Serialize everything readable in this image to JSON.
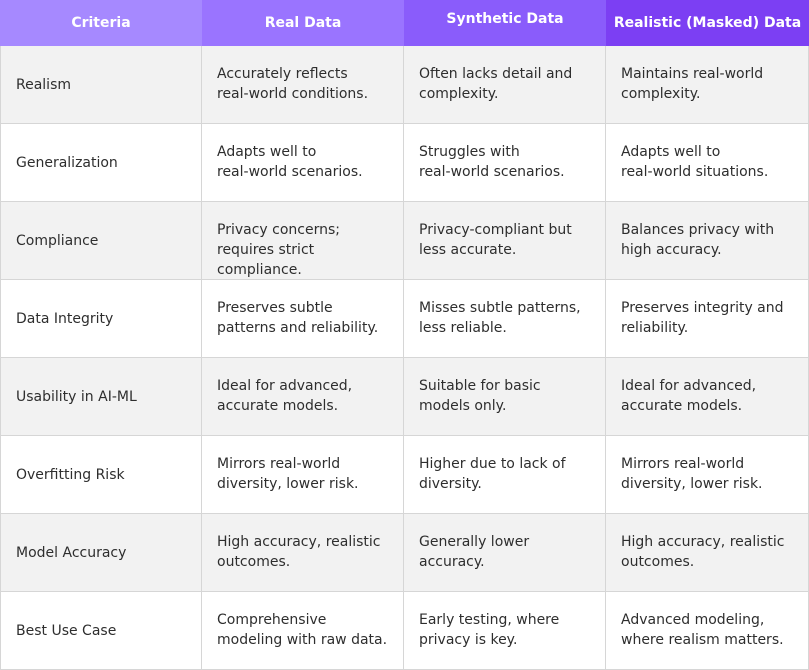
{
  "table": {
    "headers": [
      "Criteria",
      "Real Data",
      "Synthetic Data",
      "Realistic (Masked) Data"
    ],
    "rows": [
      [
        "Realism",
        "Accurately reflects\nreal-world conditions.",
        "Often lacks detail and\ncomplexity.",
        "Maintains real-world\ncomplexity."
      ],
      [
        "Generalization",
        "Adapts well to\nreal-world scenarios.",
        "Struggles with\nreal-world scenarios.",
        "Adapts well to\nreal-world situations."
      ],
      [
        "Compliance",
        "Privacy concerns;\nrequires strict\ncompliance.",
        "Privacy-compliant but\nless accurate.",
        "Balances privacy with\nhigh accuracy."
      ],
      [
        "Data Integrity",
        "Preserves subtle\npatterns and reliability.",
        "Misses subtle patterns,\nless reliable.",
        "Preserves integrity and\nreliability."
      ],
      [
        "Usability in AI-ML",
        "Ideal for advanced,\naccurate models.",
        "Suitable for basic\nmodels only.",
        "Ideal for advanced,\naccurate models."
      ],
      [
        "Overfitting Risk",
        "Mirrors real-world\ndiversity, lower risk.",
        "Higher due to lack of\ndiversity.",
        "Mirrors real-world\ndiversity, lower risk."
      ],
      [
        "Model Accuracy",
        "High accuracy, realistic\noutcomes.",
        "Generally lower\naccuracy.",
        "High accuracy, realistic\noutcomes."
      ],
      [
        "Best Use Case",
        "Comprehensive\nmodeling with raw data.",
        "Early testing, where\nprivacy is key.",
        "Advanced modeling,\nwhere realism matters."
      ]
    ]
  },
  "colors": {
    "header_col1": "#a689ff",
    "header_col2": "#9a74ff",
    "header_col3": "#8a5cfb",
    "header_col4": "#7c3ff3",
    "row_alt_bg": "#f2f2f2",
    "border": "#d6d6d6"
  }
}
